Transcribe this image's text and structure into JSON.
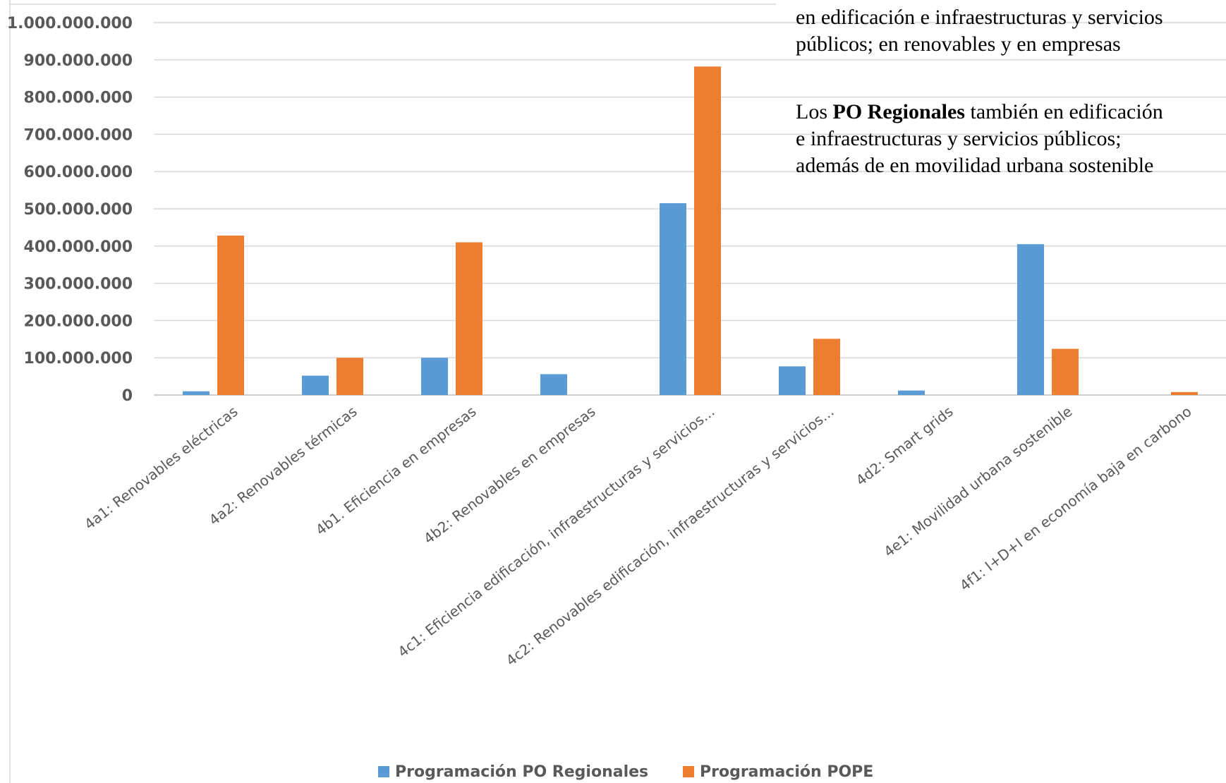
{
  "chart_data": {
    "type": "bar",
    "categories": [
      "4a1: Renovables eléctricas",
      "4a2: Renovables térmicas",
      "4b1. Eficiencia en empresas",
      "4b2: Renovables en empresas",
      "4c1: Eficiencia edificación, infraestructuras y servicios...",
      "4c2: Renovables edificación, infraestructuras y servicios...",
      "4d2: Smart grids",
      "4e1: Movilidad urbana sostenible",
      "4f1: I+D+I en economía baja en carbono"
    ],
    "series": [
      {
        "name": "Programación PO Regionales",
        "color": "#5B9BD5",
        "values": [
          10000000,
          52000000,
          100000000,
          56000000,
          515000000,
          77000000,
          12000000,
          405000000,
          0
        ]
      },
      {
        "name": "Programación POPE",
        "color": "#ED7D31",
        "values": [
          428000000,
          100000000,
          410000000,
          0,
          882000000,
          151000000,
          0,
          124000000,
          8000000
        ]
      }
    ],
    "yticks": [
      "0",
      "100.000.000",
      "200.000.000",
      "300.000.000",
      "400.000.000",
      "500.000.000",
      "600.000.000",
      "700.000.000",
      "800.000.000",
      "900.000.000",
      "1.000.000.000"
    ],
    "ylim": [
      0,
      1000000000
    ],
    "title": "",
    "xlabel": "",
    "ylabel": "",
    "grid": true,
    "legend_position": "bottom"
  },
  "annotation": {
    "line1": "en edificación e infraestructuras y servicios",
    "line2": "públicos; en renovables y en empresas",
    "p2_prefix": "Los ",
    "p2_bold": "PO Regionales",
    "p2_rest": " también en edificación",
    "p2_line2": "e infraestructuras y servicios públicos;",
    "p2_line3": "además de en movilidad urbana sostenible"
  }
}
